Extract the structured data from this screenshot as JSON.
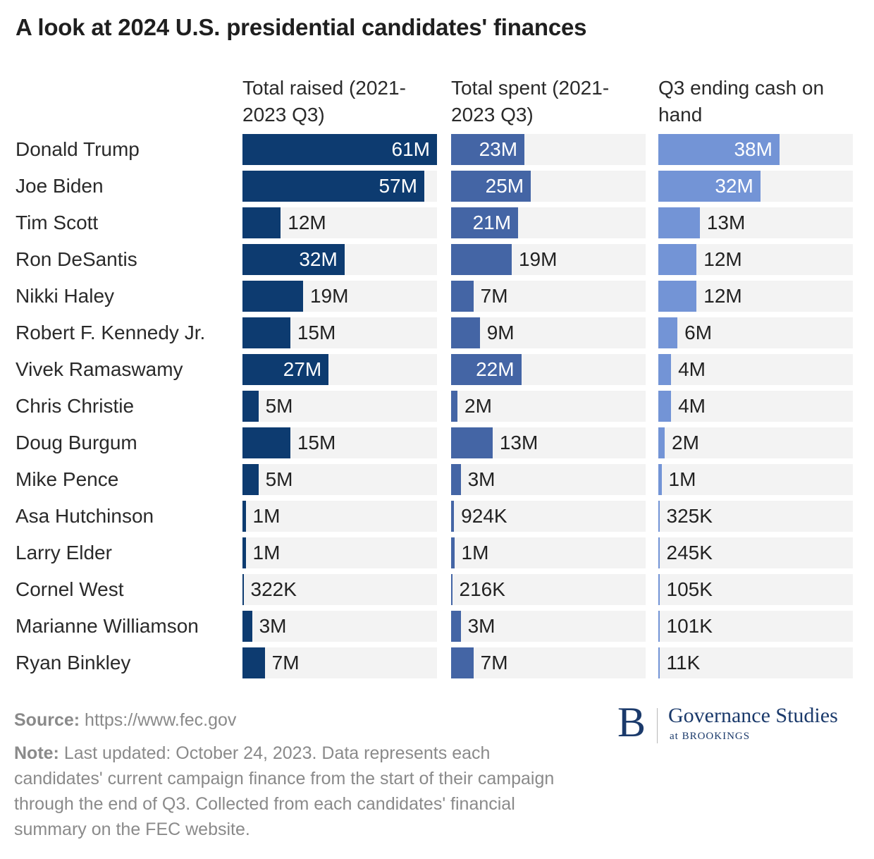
{
  "title": "A look at 2024 U.S. presidential candidates' finances",
  "chart_data": {
    "type": "bar",
    "orientation": "horizontal",
    "categories": [
      "Donald Trump",
      "Joe Biden",
      "Tim Scott",
      "Ron DeSantis",
      "Nikki Haley",
      "Robert F. Kennedy Jr.",
      "Vivek Ramaswamy",
      "Chris Christie",
      "Doug Burgum",
      "Mike Pence",
      "Asa Hutchinson",
      "Larry Elder",
      "Cornel West",
      "Marianne Williamson",
      "Ryan Binkley"
    ],
    "series": [
      {
        "name": "Total raised (2021-2023 Q3)",
        "color": "#0d3b70",
        "values": [
          61000000,
          57000000,
          12000000,
          32000000,
          19000000,
          15000000,
          27000000,
          5000000,
          15000000,
          5000000,
          1000000,
          1000000,
          322000,
          3000000,
          7000000
        ],
        "labels": [
          "61M",
          "57M",
          "12M",
          "32M",
          "19M",
          "15M",
          "27M",
          "5M",
          "15M",
          "5M",
          "1M",
          "1M",
          "322K",
          "3M",
          "7M"
        ]
      },
      {
        "name": "Total spent (2021-2023 Q3)",
        "color": "#4465a5",
        "values": [
          23000000,
          25000000,
          21000000,
          19000000,
          7000000,
          9000000,
          22000000,
          2000000,
          13000000,
          3000000,
          924000,
          1000000,
          216000,
          3000000,
          7000000
        ],
        "labels": [
          "23M",
          "25M",
          "21M",
          "19M",
          "7M",
          "9M",
          "22M",
          "2M",
          "13M",
          "3M",
          "924K",
          "1M",
          "216K",
          "3M",
          "7M"
        ]
      },
      {
        "name": "Q3 ending cash on hand",
        "color": "#7394d6",
        "values": [
          38000000,
          32000000,
          13000000,
          12000000,
          12000000,
          6000000,
          4000000,
          4000000,
          2000000,
          1000000,
          325000,
          245000,
          105000,
          101000,
          11000
        ],
        "labels": [
          "38M",
          "32M",
          "13M",
          "12M",
          "12M",
          "6M",
          "4M",
          "4M",
          "2M",
          "1M",
          "325K",
          "245K",
          "105K",
          "101K",
          "11K"
        ]
      }
    ],
    "xlim": [
      0,
      61000000
    ],
    "grid": false,
    "legend": "none"
  },
  "footer": {
    "source_label": "Source:",
    "source_text": "https://www.fec.gov",
    "note_label": "Note:",
    "note_text": "Last updated: October 24, 2023. Data represents each candidates' current campaign finance from the start of their campaign through the end of Q3. Collected from each candidates' financial summary on the FEC website."
  },
  "logo": {
    "mark": "B",
    "name": "Governance Studies",
    "sub": "at BROOKINGS"
  }
}
